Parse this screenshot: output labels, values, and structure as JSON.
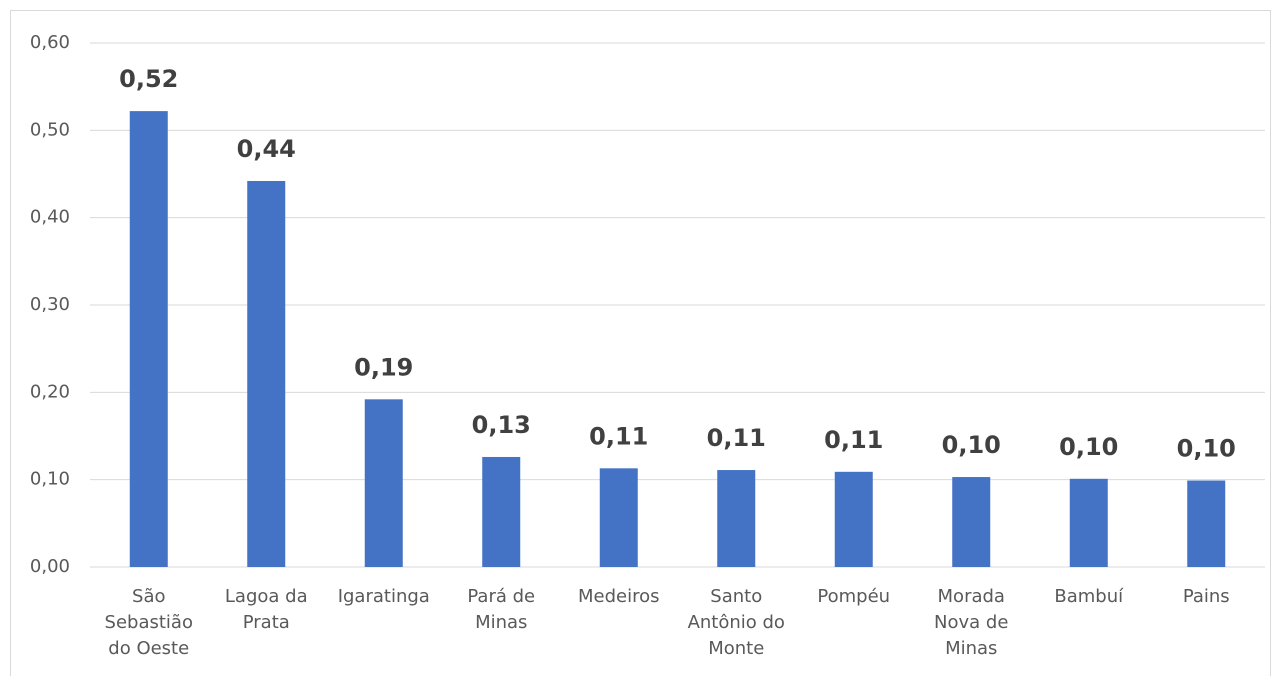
{
  "chart_data": {
    "type": "bar",
    "categories": [
      "São Sebastião do Oeste",
      "Lagoa da Prata",
      "Igaratinga",
      "Pará de Minas",
      "Medeiros",
      "Santo Antônio do Monte",
      "Pompéu",
      "Morada Nova de Minas",
      "Bambuí",
      "Pains"
    ],
    "values": [
      0.522,
      0.442,
      0.192,
      0.126,
      0.113,
      0.111,
      0.109,
      0.103,
      0.101,
      0.099
    ],
    "value_labels": [
      "0,52",
      "0,44",
      "0,19",
      "0,13",
      "0,11",
      "0,11",
      "0,11",
      "0,10",
      "0,10",
      "0,10"
    ],
    "color": "#4472c4",
    "ylim": [
      0,
      0.6
    ],
    "yticks": [
      {
        "value": 0,
        "label": "0,00"
      },
      {
        "value": 0.1,
        "label": "0,10"
      },
      {
        "value": 0.2,
        "label": "0,20"
      },
      {
        "value": 0.3,
        "label": "0,30"
      },
      {
        "value": 0.4,
        "label": "0,40"
      },
      {
        "value": 0.5,
        "label": "0,50"
      },
      {
        "value": 0.6,
        "label": "0,60"
      }
    ],
    "grid": true
  }
}
